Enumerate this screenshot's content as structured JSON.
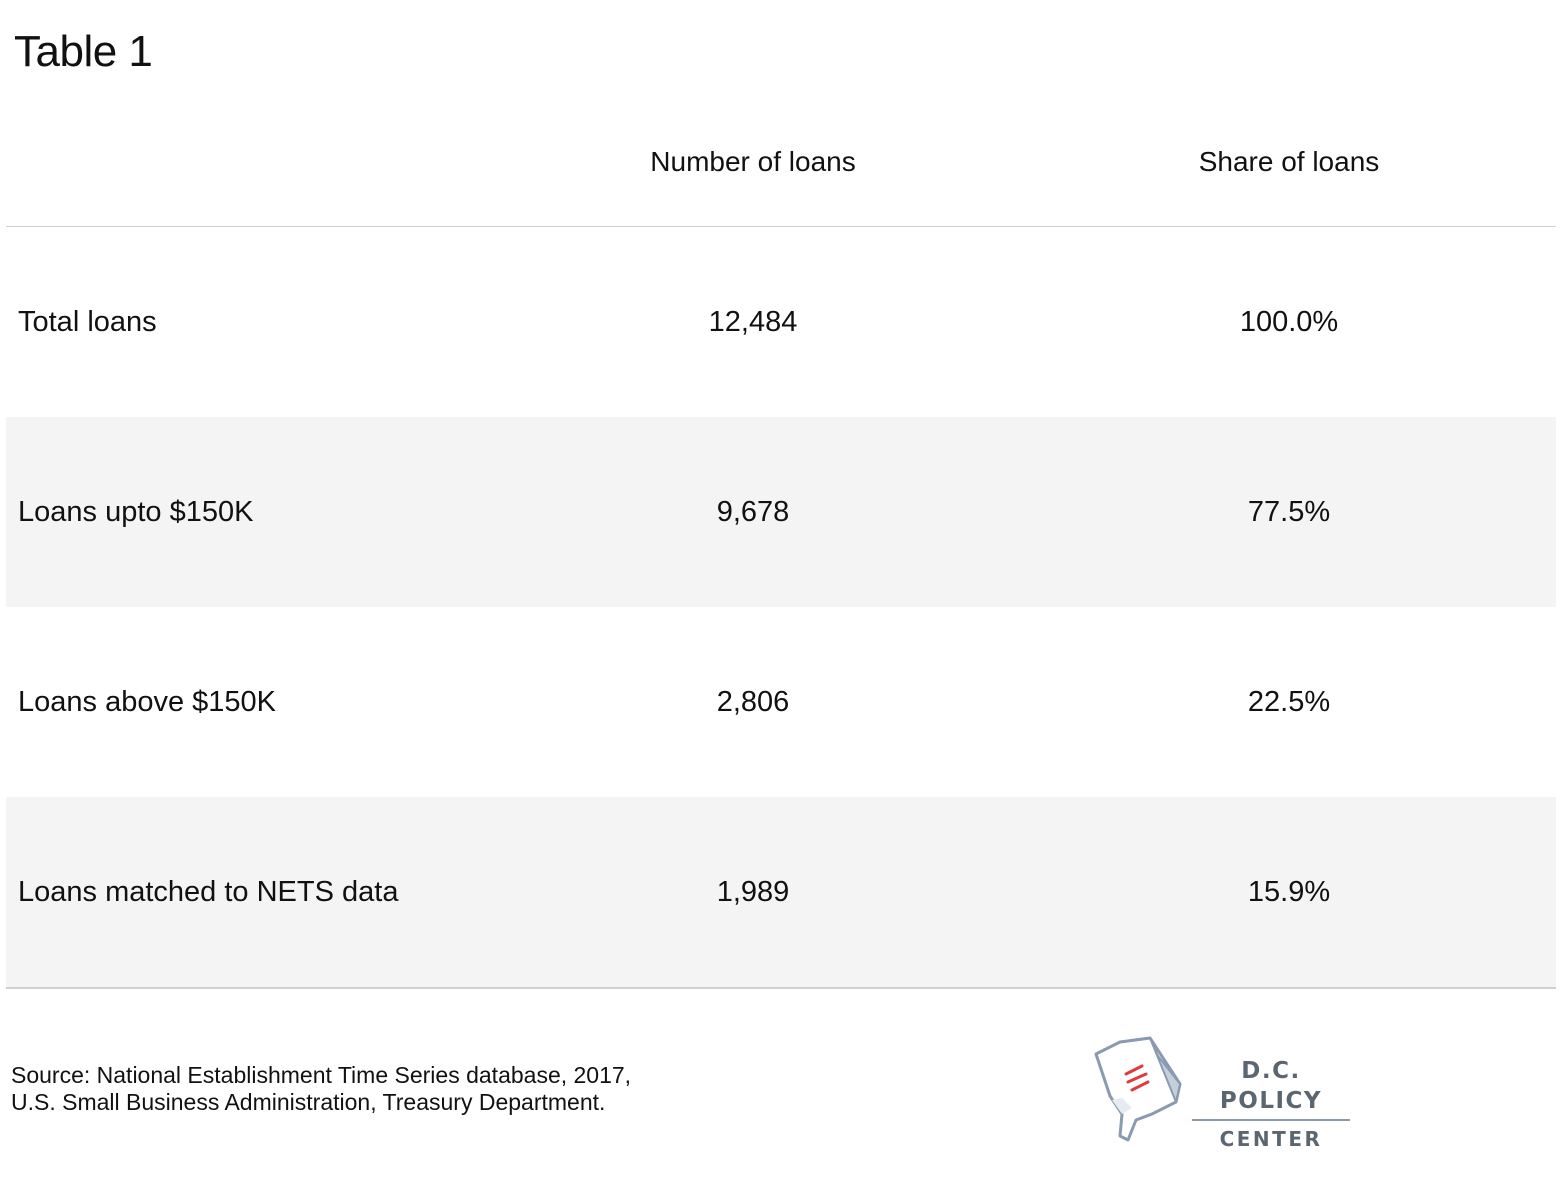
{
  "chart_data": {
    "type": "table",
    "title": "Table 1",
    "columns": [
      "",
      "Number of loans",
      "Share of loans"
    ],
    "rows": [
      {
        "label": "Total loans",
        "number": "12,484",
        "share": "100.0%"
      },
      {
        "label": "Loans upto $150K",
        "number": "9,678",
        "share": "77.5%"
      },
      {
        "label": "Loans above $150K",
        "number": "2,806",
        "share": "22.5%"
      },
      {
        "label": "Loans matched to NETS data",
        "number": "1,989",
        "share": "15.9%"
      }
    ],
    "source": [
      "Source: National Establishment Time Series database, 2017,",
      "U.S. Small Business Administration, Treasury Department."
    ]
  },
  "logo": {
    "line1": "D.C. POLICY",
    "line2": "CENTER",
    "colors": {
      "gray": "#5c6670",
      "red": "#e03a3e",
      "blue": "#8a9ab0"
    }
  },
  "colors": {
    "shaded_row": "#f4f4f4",
    "rule": "#d0d0d0",
    "text": "#111111"
  }
}
